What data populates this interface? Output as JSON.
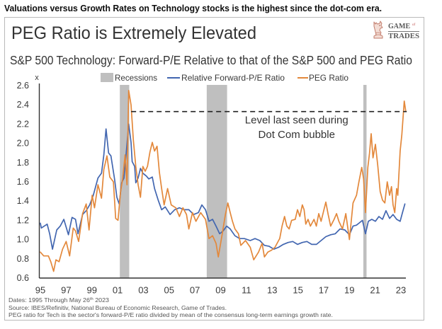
{
  "page": {
    "heading": "Valuations versus Growth Rates on Technology stocks is the highest since the dot-com era."
  },
  "card": {
    "title": "PEG Ratio is Extremely Elevated",
    "logo": {
      "icon": "bull-chess-piece-icon",
      "name_line1": "GAME",
      "name_of": "of",
      "name_line2": "TRADES"
    },
    "footnotes": {
      "dates_prefix": "Dates: 1995 Through May 26",
      "dates_sup": "th",
      "dates_suffix": " 2023",
      "source": "Source: IBES/Refinitiv, National Bureau of Economic Research, Game of Trades.",
      "definition": "PEG ratio for Tech is the sector's forward-P/E ratio divided by mean of the consensus long-term earnings growth rate."
    }
  },
  "chart_data": {
    "type": "line",
    "title": "S&P 500 Technology: Forward-P/E Relative to that of the S&P 500 and PEG Ratio",
    "xlabel": "",
    "ylabel": "x",
    "xlim": [
      1995,
      2023.5
    ],
    "ylim": [
      0.6,
      2.6
    ],
    "grid": false,
    "legend_position": "top",
    "x_ticks": {
      "values": [
        1995,
        1997,
        1999,
        2001,
        2003,
        2005,
        2007,
        2009,
        2011,
        2013,
        2015,
        2017,
        2019,
        2021,
        2023
      ],
      "labels": [
        "95",
        "97",
        "99",
        "01",
        "03",
        "05",
        "07",
        "09",
        "11",
        "13",
        "15",
        "17",
        "19",
        "21",
        "23"
      ]
    },
    "y_ticks": {
      "values": [
        0.6,
        0.8,
        1.0,
        1.2,
        1.4,
        1.6,
        1.8,
        2.0,
        2.2,
        2.4,
        2.6
      ],
      "labels": [
        "0.6",
        "0.8",
        "1.0",
        "1.2",
        "1.4",
        "1.6",
        "1.8",
        "2.0",
        "2.2",
        "2.4",
        "2.6"
      ]
    },
    "legend": [
      {
        "label": "Recessions",
        "type": "band",
        "color": "#bfbfbf"
      },
      {
        "label": "Relative Forward-P/E Ratio",
        "type": "line",
        "color": "#4266b0"
      },
      {
        "label": "PEG Ratio",
        "type": "line",
        "color": "#e3883b"
      }
    ],
    "recessions": [
      [
        2001.17,
        2001.9
      ],
      [
        2007.92,
        2009.5
      ],
      [
        2020.08,
        2020.33
      ]
    ],
    "reference_line": {
      "value": 2.33,
      "x_start": 2002.05,
      "x_end": 2023.45,
      "style": "dashed",
      "color": "#222222"
    },
    "annotation": {
      "lines": [
        {
          "text": "Level last seen during",
          "x": 2014.9,
          "y": 2.24
        },
        {
          "text": "Dot Com bubble",
          "x": 2014.9,
          "y": 2.09
        }
      ]
    },
    "series": [
      {
        "name": "Relative Forward-P/E Ratio",
        "color": "#4266b0",
        "points": [
          [
            1995.0,
            1.17
          ],
          [
            1995.07,
            1.12
          ],
          [
            1995.53,
            1.16
          ],
          [
            1995.72,
            1.06
          ],
          [
            1995.94,
            0.9
          ],
          [
            1996.27,
            1.1
          ],
          [
            1996.54,
            1.14
          ],
          [
            1996.82,
            1.21
          ],
          [
            1997.18,
            1.05
          ],
          [
            1997.46,
            1.23
          ],
          [
            1997.73,
            1.21
          ],
          [
            1997.92,
            1.06
          ],
          [
            1998.28,
            1.26
          ],
          [
            1998.56,
            1.3
          ],
          [
            1998.83,
            1.36
          ],
          [
            1999.11,
            1.46
          ],
          [
            1999.47,
            1.64
          ],
          [
            1999.75,
            1.69
          ],
          [
            1999.93,
            1.88
          ],
          [
            2000.1,
            2.15
          ],
          [
            2000.3,
            1.9
          ],
          [
            2000.48,
            1.87
          ],
          [
            2000.76,
            1.63
          ],
          [
            2000.94,
            1.44
          ],
          [
            2001.12,
            1.37
          ],
          [
            2001.31,
            1.59
          ],
          [
            2001.49,
            1.64
          ],
          [
            2001.67,
            1.91
          ],
          [
            2001.86,
            2.2
          ],
          [
            2002.04,
            2.01
          ],
          [
            2002.13,
            1.81
          ],
          [
            2002.32,
            1.76
          ],
          [
            2002.41,
            1.59
          ],
          [
            2002.59,
            1.64
          ],
          [
            2002.77,
            1.74
          ],
          [
            2002.96,
            1.69
          ],
          [
            2003.23,
            1.66
          ],
          [
            2003.42,
            1.63
          ],
          [
            2003.69,
            1.65
          ],
          [
            2003.87,
            1.53
          ],
          [
            2004.15,
            1.41
          ],
          [
            2004.42,
            1.31
          ],
          [
            2004.7,
            1.34
          ],
          [
            2005.07,
            1.26
          ],
          [
            2005.43,
            1.31
          ],
          [
            2005.8,
            1.33
          ],
          [
            2006.17,
            1.31
          ],
          [
            2006.53,
            1.31
          ],
          [
            2006.9,
            1.26
          ],
          [
            2007.27,
            1.28
          ],
          [
            2007.54,
            1.36
          ],
          [
            2007.82,
            1.31
          ],
          [
            2008.09,
            1.19
          ],
          [
            2008.37,
            1.21
          ],
          [
            2008.64,
            1.14
          ],
          [
            2008.92,
            1.06
          ],
          [
            2009.19,
            1.09
          ],
          [
            2009.47,
            1.14
          ],
          [
            2009.74,
            1.11
          ],
          [
            2010.11,
            1.04
          ],
          [
            2010.47,
            1.01
          ],
          [
            2010.84,
            1.01
          ],
          [
            2011.3,
            0.99
          ],
          [
            2011.67,
            1.01
          ],
          [
            2012.04,
            0.99
          ],
          [
            2012.4,
            0.94
          ],
          [
            2012.77,
            0.93
          ],
          [
            2013.13,
            0.9
          ],
          [
            2013.5,
            0.92
          ],
          [
            2013.87,
            0.95
          ],
          [
            2014.24,
            0.97
          ],
          [
            2014.6,
            0.98
          ],
          [
            2014.97,
            0.95
          ],
          [
            2015.34,
            0.97
          ],
          [
            2015.7,
            0.98
          ],
          [
            2016.07,
            0.95
          ],
          [
            2016.44,
            0.95
          ],
          [
            2016.8,
            0.99
          ],
          [
            2017.17,
            1.03
          ],
          [
            2017.54,
            1.05
          ],
          [
            2017.9,
            1.06
          ],
          [
            2018.27,
            1.11
          ],
          [
            2018.64,
            1.1
          ],
          [
            2019.0,
            1.05
          ],
          [
            2019.28,
            1.14
          ],
          [
            2019.55,
            1.15
          ],
          [
            2019.74,
            1.17
          ],
          [
            2020.01,
            1.2
          ],
          [
            2020.25,
            1.06
          ],
          [
            2020.47,
            1.19
          ],
          [
            2020.74,
            1.21
          ],
          [
            2021.02,
            1.19
          ],
          [
            2021.29,
            1.24
          ],
          [
            2021.57,
            1.21
          ],
          [
            2021.84,
            1.3
          ],
          [
            2022.12,
            1.22
          ],
          [
            2022.39,
            1.26
          ],
          [
            2022.67,
            1.21
          ],
          [
            2022.94,
            1.19
          ],
          [
            2023.12,
            1.28
          ],
          [
            2023.31,
            1.37
          ]
        ]
      },
      {
        "name": "PEG Ratio",
        "color": "#e3883b",
        "points": [
          [
            1995.0,
            0.87
          ],
          [
            1995.26,
            0.83
          ],
          [
            1995.62,
            0.83
          ],
          [
            1995.81,
            0.77
          ],
          [
            1996.03,
            0.67
          ],
          [
            1996.21,
            0.79
          ],
          [
            1996.45,
            0.77
          ],
          [
            1996.72,
            0.9
          ],
          [
            1997.0,
            0.98
          ],
          [
            1997.27,
            0.83
          ],
          [
            1997.55,
            1.12
          ],
          [
            1997.73,
            1.09
          ],
          [
            1997.97,
            0.98
          ],
          [
            1998.28,
            1.27
          ],
          [
            1998.56,
            1.37
          ],
          [
            1998.78,
            1.1
          ],
          [
            1999.02,
            1.46
          ],
          [
            1999.2,
            1.33
          ],
          [
            1999.47,
            1.57
          ],
          [
            1999.75,
            1.43
          ],
          [
            1999.93,
            1.73
          ],
          [
            2000.17,
            1.87
          ],
          [
            2000.39,
            1.65
          ],
          [
            2000.67,
            1.6
          ],
          [
            2000.85,
            1.22
          ],
          [
            2001.03,
            1.2
          ],
          [
            2001.22,
            1.49
          ],
          [
            2001.4,
            1.64
          ],
          [
            2001.58,
            1.88
          ],
          [
            2001.73,
            1.57
          ],
          [
            2001.86,
            2.55
          ],
          [
            2002.04,
            2.4
          ],
          [
            2002.22,
            2.03
          ],
          [
            2002.41,
            1.76
          ],
          [
            2002.59,
            1.57
          ],
          [
            2002.77,
            1.44
          ],
          [
            2002.96,
            1.76
          ],
          [
            2003.14,
            1.71
          ],
          [
            2003.32,
            1.76
          ],
          [
            2003.51,
            1.91
          ],
          [
            2003.69,
            2.01
          ],
          [
            2003.87,
            1.92
          ],
          [
            2004.06,
            1.97
          ],
          [
            2004.24,
            1.7
          ],
          [
            2004.42,
            1.53
          ],
          [
            2004.61,
            1.36
          ],
          [
            2004.88,
            1.53
          ],
          [
            2005.16,
            1.36
          ],
          [
            2005.52,
            1.33
          ],
          [
            2005.8,
            1.24
          ],
          [
            2006.07,
            1.33
          ],
          [
            2006.35,
            1.26
          ],
          [
            2006.53,
            1.11
          ],
          [
            2006.81,
            1.28
          ],
          [
            2007.08,
            1.19
          ],
          [
            2007.45,
            1.28
          ],
          [
            2007.82,
            1.21
          ],
          [
            2008.09,
            1.01
          ],
          [
            2008.37,
            1.04
          ],
          [
            2008.64,
            0.96
          ],
          [
            2008.82,
            0.82
          ],
          [
            2009.1,
            1.04
          ],
          [
            2009.37,
            1.26
          ],
          [
            2009.56,
            1.38
          ],
          [
            2009.74,
            1.28
          ],
          [
            2009.92,
            1.19
          ],
          [
            2010.11,
            1.11
          ],
          [
            2010.38,
            1.06
          ],
          [
            2010.57,
            0.94
          ],
          [
            2010.93,
            0.99
          ],
          [
            2011.3,
            0.92
          ],
          [
            2011.57,
            0.79
          ],
          [
            2011.94,
            0.87
          ],
          [
            2012.22,
            0.96
          ],
          [
            2012.4,
            0.82
          ],
          [
            2012.67,
            0.87
          ],
          [
            2012.95,
            0.89
          ],
          [
            2013.22,
            0.92
          ],
          [
            2013.5,
            0.99
          ],
          [
            2013.59,
            1.01
          ],
          [
            2013.77,
            1.14
          ],
          [
            2013.96,
            1.24
          ],
          [
            2014.14,
            1.14
          ],
          [
            2014.32,
            1.11
          ],
          [
            2014.51,
            1.2
          ],
          [
            2014.79,
            1.21
          ],
          [
            2014.97,
            1.31
          ],
          [
            2015.15,
            1.24
          ],
          [
            2015.34,
            1.36
          ],
          [
            2015.48,
            1.31
          ],
          [
            2015.61,
            1.16
          ],
          [
            2015.79,
            1.21
          ],
          [
            2015.97,
            1.14
          ],
          [
            2016.25,
            1.21
          ],
          [
            2016.43,
            1.14
          ],
          [
            2016.62,
            1.27
          ],
          [
            2016.8,
            1.19
          ],
          [
            2017.17,
            1.39
          ],
          [
            2017.35,
            1.26
          ],
          [
            2017.54,
            1.14
          ],
          [
            2017.81,
            1.21
          ],
          [
            2018.0,
            1.27
          ],
          [
            2018.18,
            1.19
          ],
          [
            2018.46,
            1.11
          ],
          [
            2018.72,
            1.27
          ],
          [
            2019.0,
            1.0
          ],
          [
            2019.28,
            1.38
          ],
          [
            2019.55,
            1.46
          ],
          [
            2019.74,
            1.6
          ],
          [
            2019.96,
            1.75
          ],
          [
            2020.1,
            1.63
          ],
          [
            2020.25,
            1.28
          ],
          [
            2020.43,
            1.75
          ],
          [
            2020.56,
            1.9
          ],
          [
            2020.69,
            2.1
          ],
          [
            2020.83,
            1.85
          ],
          [
            2021.02,
            1.99
          ],
          [
            2021.2,
            1.77
          ],
          [
            2021.39,
            1.5
          ],
          [
            2021.57,
            1.41
          ],
          [
            2021.75,
            1.38
          ],
          [
            2021.94,
            1.6
          ],
          [
            2022.12,
            1.46
          ],
          [
            2022.27,
            1.55
          ],
          [
            2022.39,
            1.36
          ],
          [
            2022.52,
            1.28
          ],
          [
            2022.67,
            1.53
          ],
          [
            2022.76,
            1.46
          ],
          [
            2022.94,
            1.92
          ],
          [
            2023.07,
            2.09
          ],
          [
            2023.26,
            2.44
          ],
          [
            2023.37,
            2.34
          ]
        ]
      }
    ]
  }
}
